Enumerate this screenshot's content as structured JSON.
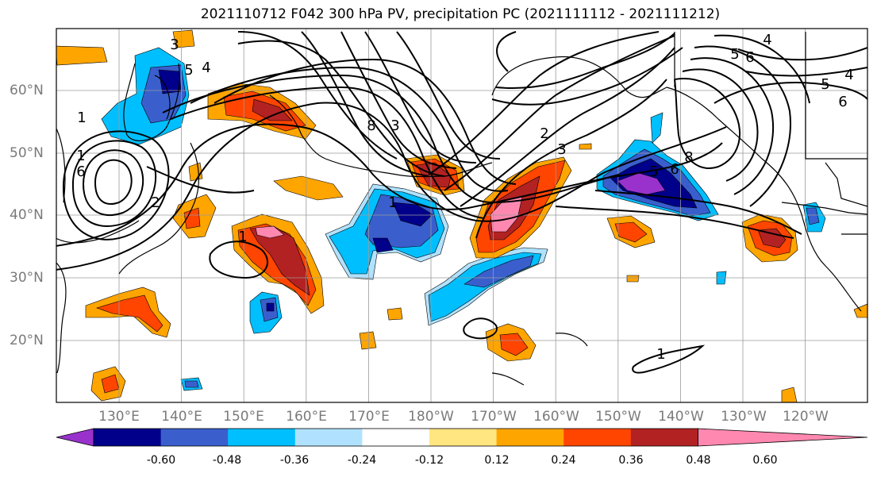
{
  "title": "2021110712 F042 300 hPa PV, precipitation PC (2021111112 - 2021111212)",
  "axes": {
    "lat_labels": [
      "60°N",
      "50°N",
      "40°N",
      "30°N",
      "20°N"
    ],
    "lon_labels": [
      "130°E",
      "140°E",
      "150°E",
      "160°E",
      "170°E",
      "180°W",
      "170°W",
      "160°W",
      "150°W",
      "140°W",
      "130°W",
      "120°W"
    ],
    "grid": true
  },
  "colorbar": {
    "ticks": [
      "-0.60",
      "-0.48",
      "-0.36",
      "-0.24",
      "-0.12",
      "0.12",
      "0.24",
      "0.36",
      "0.48",
      "0.60"
    ],
    "colors": [
      "#9932cc",
      "#00008b",
      "#3a5fcd",
      "#00bfff",
      "#b0e2ff",
      "#ffffff",
      "#ffe680",
      "#ffa500",
      "#ff4500",
      "#b22222",
      "#ff88b0"
    ],
    "extend": "both"
  },
  "contour_labels": [
    "1",
    "2",
    "3",
    "4",
    "5",
    "6",
    "1",
    "4",
    "5",
    "6",
    "5",
    "4",
    "6",
    "8",
    "3",
    "2",
    "3",
    "5",
    "6",
    "8",
    "1",
    "1",
    "1"
  ],
  "colors": {
    "contour": "#000000",
    "coast": "#000000",
    "grid": "#9a9a9a",
    "tick_label": "#7a7a7a"
  }
}
